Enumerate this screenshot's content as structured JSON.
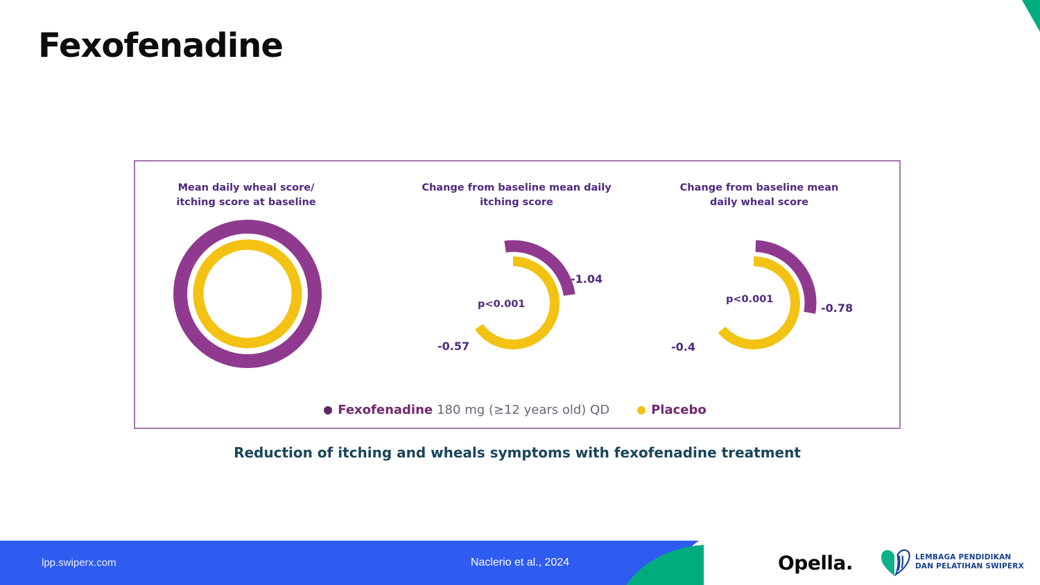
{
  "slide": {
    "title": "Fexofenadine",
    "caption": "Reduction of itching and wheals symptoms with fexofenadine treatment"
  },
  "figure": {
    "legend": {
      "fexofenadine_label": "Fexofenadine",
      "fexofenadine_detail": "180 mg (≥12 years old) QD",
      "placebo_label": "Placebo"
    }
  },
  "chart_data": [
    {
      "type": "donut",
      "title": "Mean daily wheal score/ itching score at baseline",
      "title_line1": "Mean daily wheal score/",
      "title_line2": "itching score at baseline",
      "series": [
        {
          "name": "Fexofenadine 180 mg (≥12 years old) QD",
          "color": "#8f3a8f"
        },
        {
          "name": "Placebo",
          "color": "#f3c212"
        }
      ],
      "rings": [
        {
          "series": 0,
          "r": 97,
          "width": 20
        },
        {
          "series": 1,
          "r": 71,
          "width": 15
        }
      ],
      "note": "Concentric full rings: baseline scores shown equal for both groups"
    },
    {
      "type": "gauge",
      "title": "Change from baseline mean daily itching score",
      "title_line1": "Change from baseline mean daily",
      "title_line2": "itching score",
      "p_value": "p<0.001",
      "series": [
        {
          "name": "Fexofenadine",
          "value": -1.04,
          "label": "-1.04",
          "color": "#8f3a8f"
        },
        {
          "name": "Placebo",
          "value": -0.57,
          "label": "-0.57",
          "color": "#f3c212"
        }
      ],
      "arcs": [
        {
          "series": 1,
          "r": 60,
          "width": 14,
          "start_deg": 0,
          "end_deg": 235
        },
        {
          "series": 0,
          "r": 82,
          "width": 17,
          "start_deg": -8,
          "end_deg": 82
        }
      ]
    },
    {
      "type": "gauge",
      "title": "Change from baseline mean daily wheal score",
      "title_line1": "Change from baseline mean",
      "title_line2": "daily wheal score",
      "p_value": "p<0.001",
      "series": [
        {
          "name": "Fexofenadine",
          "value": -0.78,
          "label": "-0.78",
          "color": "#8f3a8f"
        },
        {
          "name": "Placebo",
          "value": -0.4,
          "label": "-0.4",
          "color": "#f3c212"
        }
      ],
      "arcs": [
        {
          "series": 1,
          "r": 60,
          "width": 14,
          "start_deg": 0,
          "end_deg": 230
        },
        {
          "series": 0,
          "r": 82,
          "width": 17,
          "start_deg": 2,
          "end_deg": 100
        }
      ]
    }
  ],
  "footer": {
    "left": "lpp.swiperx.com",
    "center": "Naclerio et al., 2024",
    "brand": "Opella.",
    "org_line1": "LEMBAGA PENDIDIKAN",
    "org_line2": "DAN PELATIHAN SWIPERX"
  },
  "colors": {
    "fexofenadine_purple": "#8f3a8f",
    "placebo_yellow": "#f3c212",
    "heading_purple": "#4e2a7e",
    "caption_navy": "#19455a",
    "footer_blue": "#2e5bf0",
    "accent_green": "#00ac7e",
    "org_blue": "#16418f"
  }
}
